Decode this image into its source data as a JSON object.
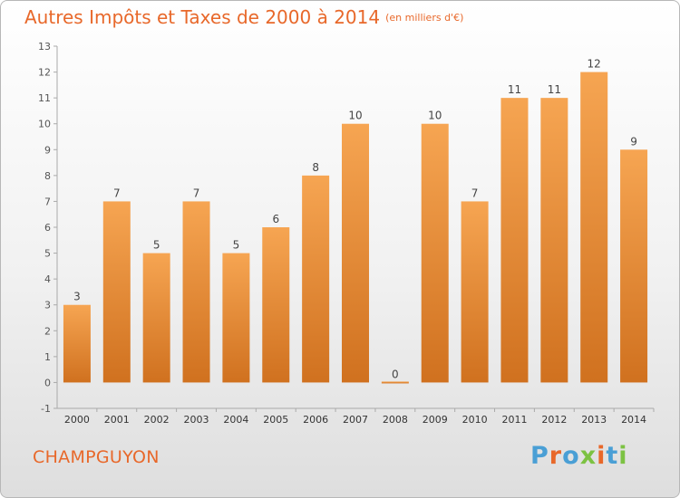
{
  "header": {
    "title": "Autres Impôts et Taxes de 2000 à 2014",
    "unit": "(en milliers d'€)"
  },
  "footer": {
    "place": "CHAMPGUYON",
    "brand": "Proxiti"
  },
  "colors": {
    "accent": "#e8682a",
    "bar_light": "#f6a552",
    "bar_dark": "#d0711f",
    "brand_letters": [
      "#4a9fd5",
      "#e8682a",
      "#4a9fd5",
      "#7cc242",
      "#e8682a",
      "#4a9fd5",
      "#7cc242"
    ]
  },
  "chart_data": {
    "type": "bar",
    "title": "Autres Impôts et Taxes de 2000 à 2014",
    "subtitle": "(en milliers d'€)",
    "categories": [
      "2000",
      "2001",
      "2002",
      "2003",
      "2004",
      "2005",
      "2006",
      "2007",
      "2008",
      "2009",
      "2010",
      "2011",
      "2012",
      "2013",
      "2014"
    ],
    "values": [
      3,
      7,
      5,
      7,
      5,
      6,
      8,
      10,
      0,
      10,
      7,
      11,
      11,
      12,
      9
    ],
    "ylim": [
      -1,
      13
    ],
    "yticks": [
      -1,
      0,
      1,
      2,
      3,
      4,
      5,
      6,
      7,
      8,
      9,
      10,
      11,
      12,
      13
    ],
    "grid": false,
    "data_labels": true
  }
}
